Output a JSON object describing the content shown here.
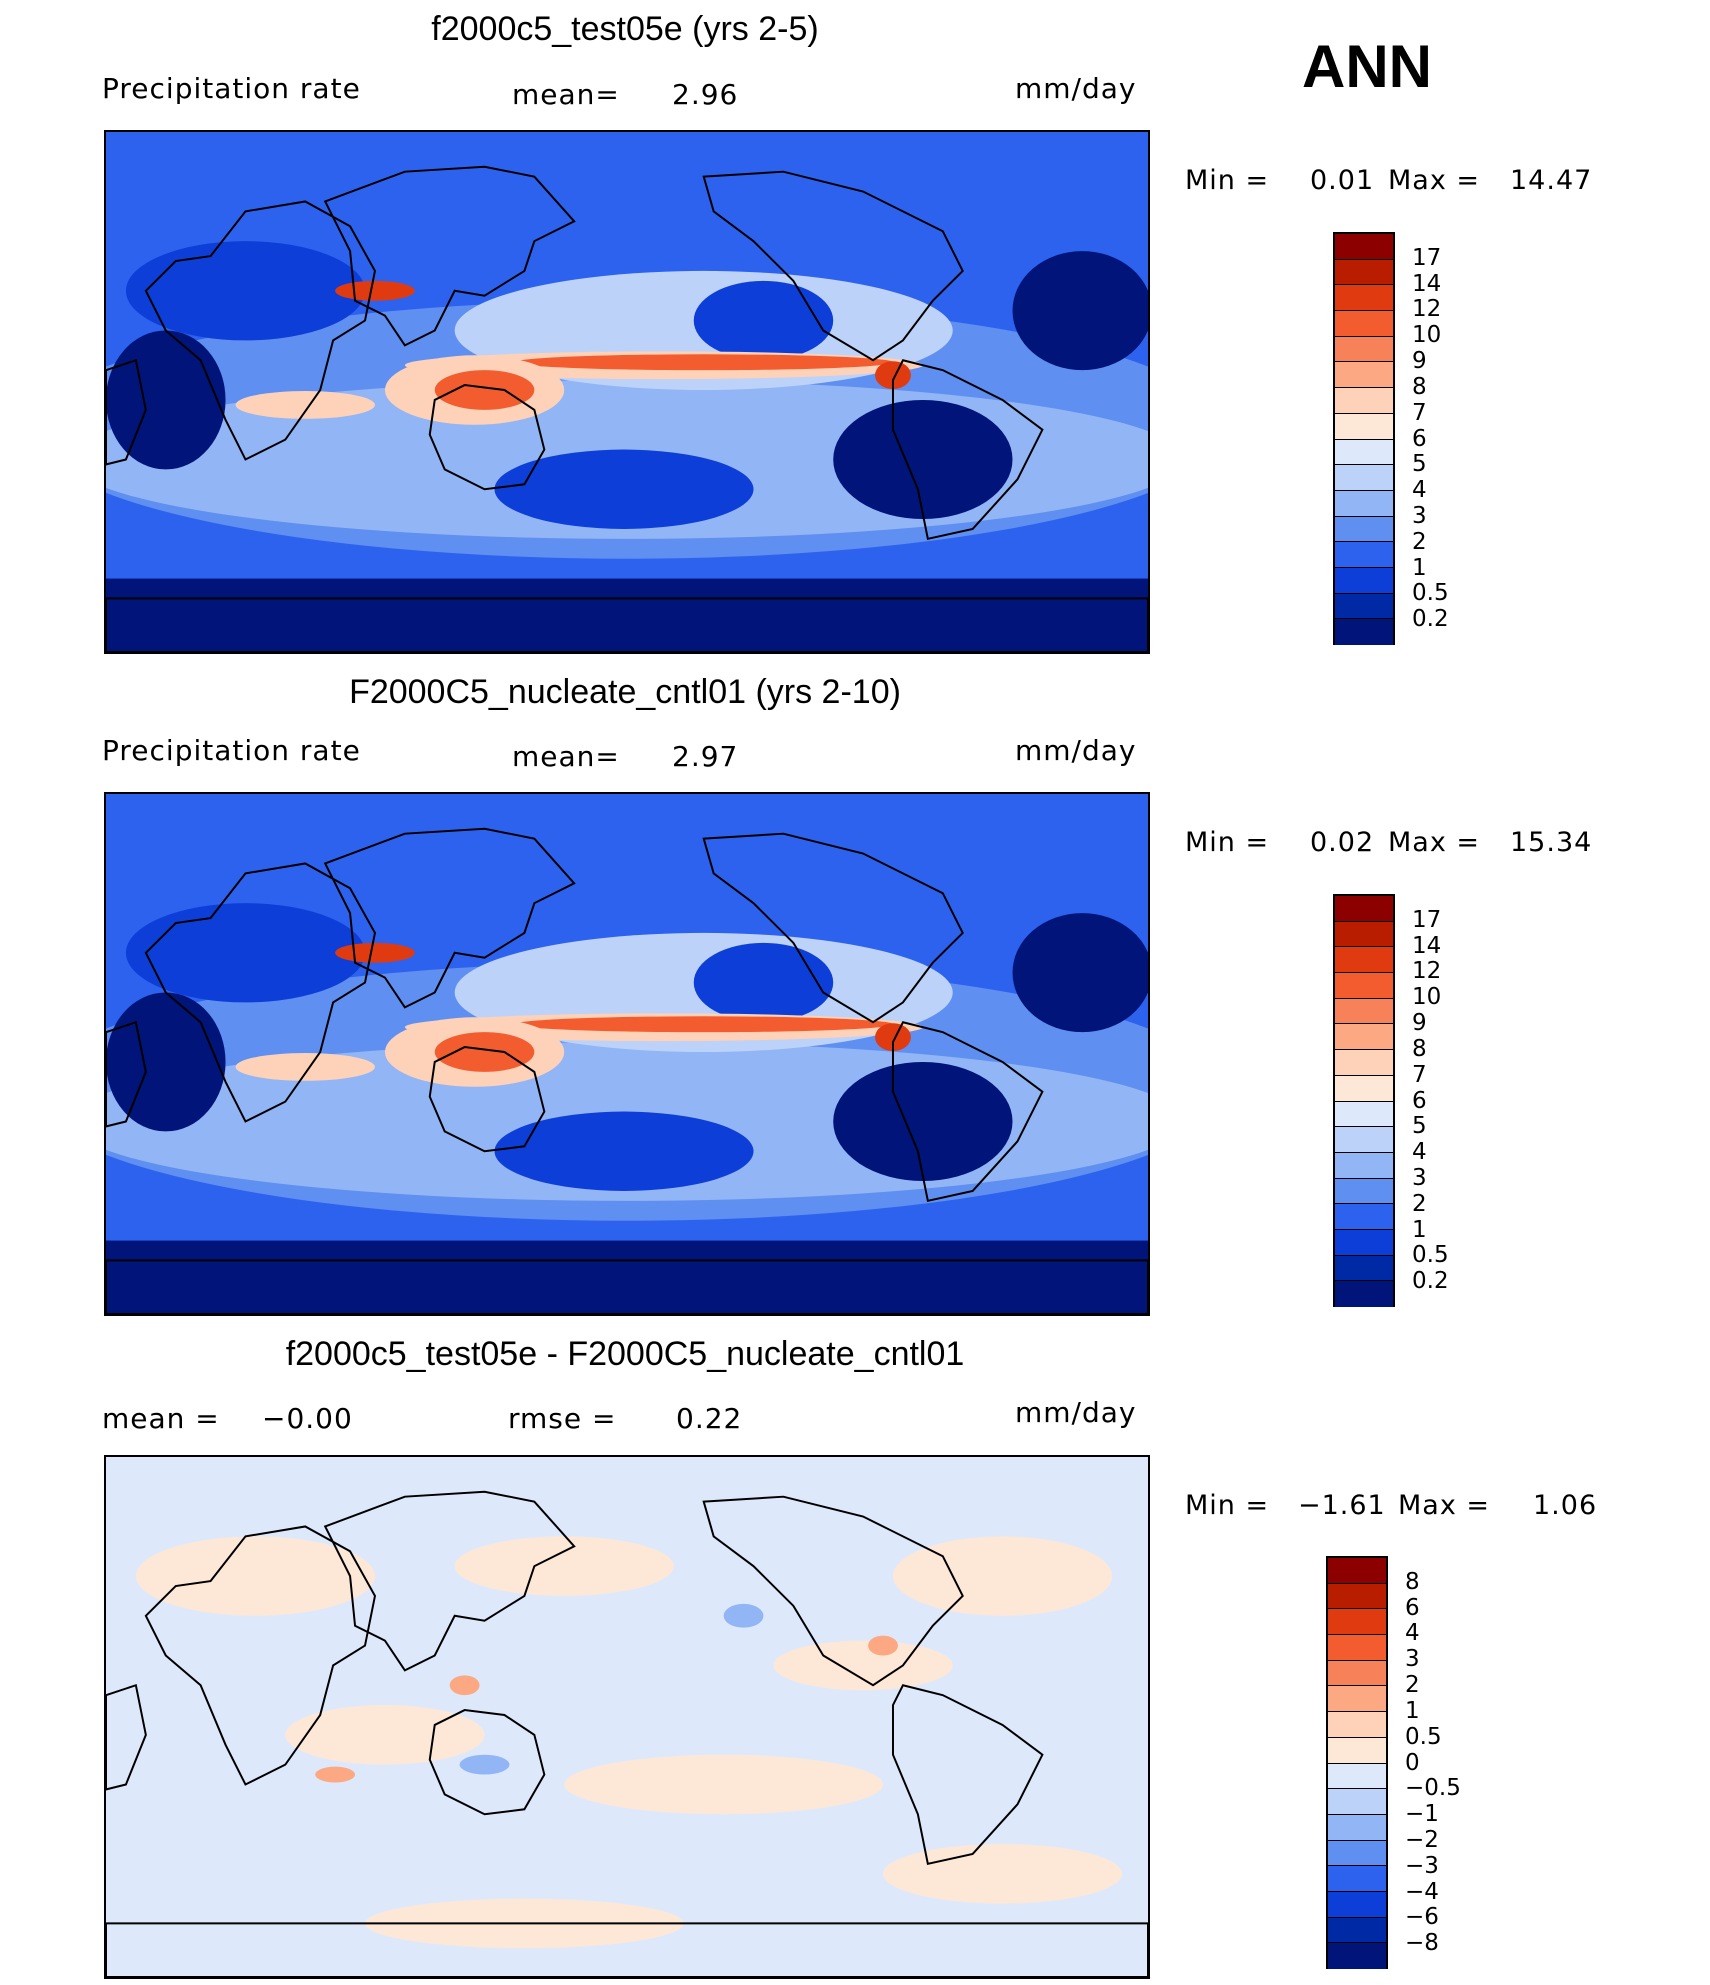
{
  "season": "ANN",
  "panels": [
    {
      "title": "f2000c5_test05e (yrs 2-5)",
      "variable": "Precipitation rate",
      "mean_label": "mean=",
      "mean_value": "2.96",
      "units": "mm/day",
      "min_label": "Min =",
      "min_value": "0.01",
      "max_label": "Max =",
      "max_value": "14.47",
      "colorbar_ticks": [
        "17",
        "14",
        "12",
        "10",
        "9",
        "8",
        "7",
        "6",
        "5",
        "4",
        "3",
        "2",
        "1",
        "0.5",
        "0.2"
      ],
      "colorbar_colors": [
        "#8c0000",
        "#b81d00",
        "#e03a10",
        "#f25c2e",
        "#f7825a",
        "#fba883",
        "#fdd2b9",
        "#fde8d8",
        "#dde9fb",
        "#bcd2f8",
        "#92b5f5",
        "#5f8ff0",
        "#2d62ef",
        "#0d3ed8",
        "#002aa5",
        "#00147a"
      ]
    },
    {
      "title": "F2000C5_nucleate_cntl01 (yrs 2-10)",
      "variable": "Precipitation rate",
      "mean_label": "mean=",
      "mean_value": "2.97",
      "units": "mm/day",
      "min_label": "Min =",
      "min_value": "0.02",
      "max_label": "Max =",
      "max_value": "15.34",
      "colorbar_ticks": [
        "17",
        "14",
        "12",
        "10",
        "9",
        "8",
        "7",
        "6",
        "5",
        "4",
        "3",
        "2",
        "1",
        "0.5",
        "0.2"
      ],
      "colorbar_colors": [
        "#8c0000",
        "#b81d00",
        "#e03a10",
        "#f25c2e",
        "#f7825a",
        "#fba883",
        "#fdd2b9",
        "#fde8d8",
        "#dde9fb",
        "#bcd2f8",
        "#92b5f5",
        "#5f8ff0",
        "#2d62ef",
        "#0d3ed8",
        "#002aa5",
        "#00147a"
      ]
    },
    {
      "title": "f2000c5_test05e - F2000C5_nucleate_cntl01",
      "mean_label": "mean =",
      "mean_value": "−0.00",
      "rmse_label": "rmse =",
      "rmse_value": "0.22",
      "units": "mm/day",
      "min_label": "Min =",
      "min_value": "−1.61",
      "max_label": "Max =",
      "max_value": "1.06",
      "colorbar_ticks": [
        "8",
        "6",
        "4",
        "3",
        "2",
        "1",
        "0.5",
        "0",
        "−0.5",
        "−1",
        "−2",
        "−3",
        "−4",
        "−6",
        "−8"
      ],
      "colorbar_colors": [
        "#8c0000",
        "#b81d00",
        "#e03a10",
        "#f25c2e",
        "#f7825a",
        "#fba883",
        "#fdd2b9",
        "#fde8d8",
        "#dde9fb",
        "#bcd2f8",
        "#92b5f5",
        "#5f8ff0",
        "#2d62ef",
        "#0d3ed8",
        "#002aa5",
        "#00147a"
      ]
    }
  ],
  "map_colors": {
    "dry": "#00147a",
    "low": "#0d3ed8",
    "mid": "#2d62ef",
    "moist": "#5f8ff0",
    "wet": "#92b5f5",
    "wetter": "#bcd2f8",
    "itcz_light": "#fdd2b9",
    "itcz": "#f25c2e",
    "itcz_core": "#e03a10",
    "diff_neutral_pos": "#fde8d8",
    "diff_neutral_neg": "#dde9fb",
    "diff_pos": "#fba883",
    "diff_neg": "#92b5f5",
    "coast": "#000000"
  }
}
